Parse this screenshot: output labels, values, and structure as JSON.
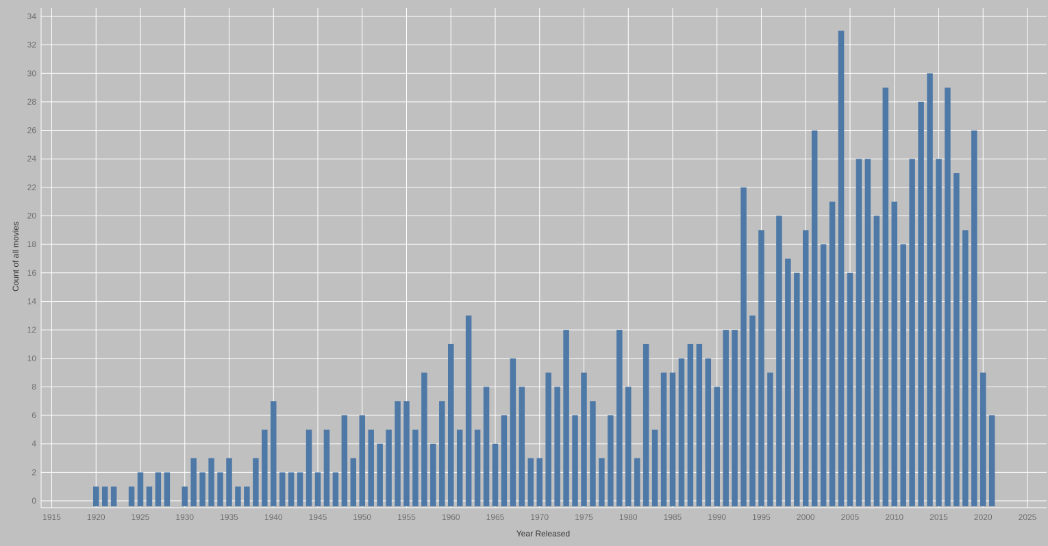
{
  "chart_data": {
    "type": "bar",
    "title": "",
    "xlabel": "Year Released",
    "ylabel": "Count of all movies",
    "xlim": [
      1914,
      2027
    ],
    "ylim": [
      0,
      35
    ],
    "x_ticks": [
      1915,
      1920,
      1925,
      1930,
      1935,
      1940,
      1945,
      1950,
      1955,
      1960,
      1965,
      1970,
      1975,
      1980,
      1985,
      1990,
      1995,
      2000,
      2005,
      2010,
      2015,
      2020,
      2025
    ],
    "y_ticks": [
      0,
      2,
      4,
      6,
      8,
      10,
      12,
      14,
      16,
      18,
      20,
      22,
      24,
      26,
      28,
      30,
      32,
      34
    ],
    "grid": true,
    "bar_color": "#4e79a7",
    "background_color": "#c0c0c0",
    "gridline_color": "#ffffff",
    "x": [
      1920,
      1921,
      1922,
      1924,
      1925,
      1926,
      1927,
      1928,
      1930,
      1931,
      1932,
      1933,
      1934,
      1935,
      1936,
      1937,
      1938,
      1939,
      1940,
      1941,
      1942,
      1943,
      1944,
      1945,
      1946,
      1947,
      1948,
      1949,
      1950,
      1951,
      1952,
      1953,
      1954,
      1955,
      1956,
      1957,
      1958,
      1959,
      1960,
      1961,
      1962,
      1963,
      1964,
      1965,
      1966,
      1967,
      1968,
      1969,
      1970,
      1971,
      1972,
      1973,
      1974,
      1975,
      1976,
      1977,
      1978,
      1979,
      1980,
      1981,
      1982,
      1983,
      1984,
      1985,
      1986,
      1987,
      1988,
      1989,
      1990,
      1991,
      1992,
      1993,
      1994,
      1995,
      1996,
      1997,
      1998,
      1999,
      2000,
      2001,
      2002,
      2003,
      2004,
      2005,
      2006,
      2007,
      2008,
      2009,
      2010,
      2011,
      2012,
      2013,
      2014,
      2015,
      2016,
      2017,
      2018,
      2019,
      2020,
      2021
    ],
    "values": [
      1,
      1,
      1,
      1,
      2,
      1,
      2,
      2,
      1,
      3,
      2,
      3,
      2,
      3,
      1,
      1,
      3,
      5,
      7,
      2,
      2,
      2,
      5,
      2,
      5,
      2,
      6,
      3,
      6,
      5,
      4,
      5,
      7,
      7,
      5,
      9,
      4,
      7,
      11,
      5,
      13,
      5,
      8,
      4,
      6,
      10,
      8,
      3,
      3,
      9,
      8,
      12,
      6,
      9,
      7,
      3,
      6,
      12,
      8,
      3,
      11,
      5,
      9,
      9,
      10,
      11,
      11,
      10,
      8,
      12,
      12,
      22,
      13,
      19,
      9,
      20,
      17,
      16,
      19,
      26,
      18,
      21,
      33,
      16,
      24,
      24,
      20,
      29,
      21,
      18,
      24,
      28,
      30,
      24,
      29,
      23,
      19,
      26,
      9,
      6
    ]
  }
}
